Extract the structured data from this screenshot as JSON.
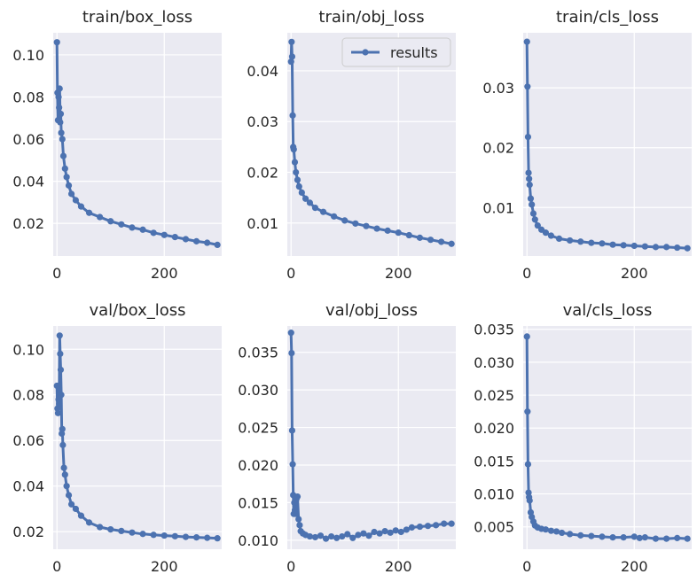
{
  "figure": {
    "series_color": "#4c72b0",
    "panel_background": "#eaeaf2",
    "grid_color": "#ffffff",
    "legend_entry": "results"
  },
  "chart_data": [
    {
      "type": "line",
      "title": "train/box_loss",
      "xlim": [
        -7,
        307
      ],
      "ylim": [
        0.0045,
        0.1105
      ],
      "xticks": [
        0,
        200
      ],
      "yticks": [
        0.02,
        0.04,
        0.06,
        0.08,
        0.1
      ],
      "ytick_labels": [
        "0.02",
        "0.04",
        "0.06",
        "0.08",
        "0.10"
      ],
      "grid": true,
      "legend": null,
      "series": [
        {
          "points": [
            [
              0,
              0.106
            ],
            [
              1,
              0.082
            ],
            [
              2,
              0.069
            ],
            [
              3,
              0.08
            ],
            [
              4,
              0.075
            ],
            [
              5,
              0.084
            ],
            [
              6,
              0.068
            ],
            [
              7,
              0.072
            ],
            [
              8,
              0.063
            ],
            [
              10,
              0.06
            ],
            [
              12,
              0.052
            ],
            [
              15,
              0.046
            ],
            [
              18,
              0.042
            ],
            [
              22,
              0.038
            ],
            [
              27,
              0.034
            ],
            [
              35,
              0.031
            ],
            [
              45,
              0.028
            ],
            [
              60,
              0.025
            ],
            [
              80,
              0.023
            ],
            [
              100,
              0.021
            ],
            [
              120,
              0.0195
            ],
            [
              140,
              0.018
            ],
            [
              160,
              0.017
            ],
            [
              180,
              0.0155
            ],
            [
              200,
              0.0145
            ],
            [
              220,
              0.0135
            ],
            [
              240,
              0.0125
            ],
            [
              260,
              0.0115
            ],
            [
              280,
              0.0108
            ],
            [
              299,
              0.0098
            ]
          ]
        }
      ]
    },
    {
      "type": "line",
      "title": "train/obj_loss",
      "xlim": [
        -7,
        307
      ],
      "ylim": [
        0.0035,
        0.0475
      ],
      "xticks": [
        0,
        200
      ],
      "yticks": [
        0.01,
        0.02,
        0.03,
        0.04
      ],
      "ytick_labels": [
        "0.01",
        "0.02",
        "0.03",
        "0.04"
      ],
      "grid": true,
      "legend": "upper right",
      "series": [
        {
          "name": "results",
          "points": [
            [
              0,
              0.0418
            ],
            [
              1,
              0.0457
            ],
            [
              2,
              0.0428
            ],
            [
              3,
              0.0312
            ],
            [
              4,
              0.025
            ],
            [
              5,
              0.0245
            ],
            [
              7,
              0.022
            ],
            [
              9,
              0.02
            ],
            [
              12,
              0.0185
            ],
            [
              15,
              0.0172
            ],
            [
              20,
              0.016
            ],
            [
              27,
              0.0148
            ],
            [
              35,
              0.014
            ],
            [
              45,
              0.013
            ],
            [
              60,
              0.0122
            ],
            [
              80,
              0.0113
            ],
            [
              100,
              0.0105
            ],
            [
              120,
              0.0099
            ],
            [
              140,
              0.0094
            ],
            [
              160,
              0.0089
            ],
            [
              180,
              0.0085
            ],
            [
              200,
              0.0081
            ],
            [
              220,
              0.0076
            ],
            [
              240,
              0.0071
            ],
            [
              260,
              0.0067
            ],
            [
              280,
              0.0063
            ],
            [
              299,
              0.0059
            ]
          ]
        }
      ]
    },
    {
      "type": "line",
      "title": "train/cls_loss",
      "xlim": [
        -7,
        307
      ],
      "ylim": [
        0.0019,
        0.0392
      ],
      "xticks": [
        0,
        200
      ],
      "yticks": [
        0.01,
        0.02,
        0.03
      ],
      "ytick_labels": [
        "0.01",
        "0.02",
        "0.03"
      ],
      "grid": true,
      "legend": null,
      "series": [
        {
          "points": [
            [
              0,
              0.0377
            ],
            [
              1,
              0.0302
            ],
            [
              2,
              0.0218
            ],
            [
              3,
              0.0158
            ],
            [
              4,
              0.0148
            ],
            [
              5,
              0.0138
            ],
            [
              7,
              0.0115
            ],
            [
              9,
              0.0105
            ],
            [
              12,
              0.009
            ],
            [
              15,
              0.008
            ],
            [
              20,
              0.007
            ],
            [
              27,
              0.0063
            ],
            [
              35,
              0.0058
            ],
            [
              45,
              0.0053
            ],
            [
              60,
              0.0048
            ],
            [
              80,
              0.0045
            ],
            [
              100,
              0.0043
            ],
            [
              120,
              0.0041
            ],
            [
              140,
              0.004
            ],
            [
              160,
              0.0038
            ],
            [
              180,
              0.0037
            ],
            [
              200,
              0.0036
            ],
            [
              220,
              0.0035
            ],
            [
              240,
              0.0034
            ],
            [
              260,
              0.0034
            ],
            [
              280,
              0.0033
            ],
            [
              299,
              0.0032
            ]
          ]
        }
      ]
    },
    {
      "type": "line",
      "title": "val/box_loss",
      "xlim": [
        -7,
        307
      ],
      "ylim": [
        0.0123,
        0.1102
      ],
      "xticks": [
        0,
        200
      ],
      "yticks": [
        0.02,
        0.04,
        0.06,
        0.08,
        0.1
      ],
      "ytick_labels": [
        "0.02",
        "0.04",
        "0.06",
        "0.08",
        "0.10"
      ],
      "grid": true,
      "legend": null,
      "series": [
        {
          "points": [
            [
              0,
              0.084
            ],
            [
              1,
              0.074
            ],
            [
              2,
              0.072
            ],
            [
              3,
              0.078
            ],
            [
              4,
              0.076
            ],
            [
              5,
              0.106
            ],
            [
              6,
              0.098
            ],
            [
              7,
              0.091
            ],
            [
              8,
              0.08
            ],
            [
              9,
              0.063
            ],
            [
              10,
              0.065
            ],
            [
              11,
              0.058
            ],
            [
              13,
              0.048
            ],
            [
              15,
              0.045
            ],
            [
              18,
              0.04
            ],
            [
              22,
              0.036
            ],
            [
              27,
              0.032
            ],
            [
              35,
              0.03
            ],
            [
              45,
              0.027
            ],
            [
              60,
              0.024
            ],
            [
              80,
              0.022
            ],
            [
              100,
              0.021
            ],
            [
              120,
              0.0203
            ],
            [
              140,
              0.0196
            ],
            [
              160,
              0.019
            ],
            [
              180,
              0.0186
            ],
            [
              200,
              0.0183
            ],
            [
              220,
              0.018
            ],
            [
              240,
              0.0177
            ],
            [
              260,
              0.0175
            ],
            [
              280,
              0.0173
            ],
            [
              299,
              0.0171
            ]
          ]
        }
      ]
    },
    {
      "type": "line",
      "title": "val/obj_loss",
      "xlim": [
        -7,
        307
      ],
      "ylim": [
        0.0088,
        0.0385
      ],
      "xticks": [
        0,
        200
      ],
      "yticks": [
        0.01,
        0.015,
        0.02,
        0.025,
        0.03,
        0.035
      ],
      "ytick_labels": [
        "0.010",
        "0.015",
        "0.020",
        "0.025",
        "0.030",
        "0.035"
      ],
      "grid": true,
      "legend": null,
      "series": [
        {
          "points": [
            [
              0,
              0.0376
            ],
            [
              1,
              0.0349
            ],
            [
              2,
              0.0246
            ],
            [
              3,
              0.0201
            ],
            [
              4,
              0.016
            ],
            [
              5,
              0.0135
            ],
            [
              6,
              0.015
            ],
            [
              7,
              0.014
            ],
            [
              8,
              0.0135
            ],
            [
              10,
              0.0155
            ],
            [
              12,
              0.0158
            ],
            [
              14,
              0.0128
            ],
            [
              16,
              0.012
            ],
            [
              18,
              0.0112
            ],
            [
              22,
              0.0109
            ],
            [
              27,
              0.0107
            ],
            [
              35,
              0.0105
            ],
            [
              45,
              0.0104
            ],
            [
              55,
              0.0106
            ],
            [
              65,
              0.0102
            ],
            [
              75,
              0.0105
            ],
            [
              85,
              0.0103
            ],
            [
              95,
              0.0105
            ],
            [
              105,
              0.0108
            ],
            [
              115,
              0.0103
            ],
            [
              125,
              0.0107
            ],
            [
              135,
              0.0109
            ],
            [
              145,
              0.0106
            ],
            [
              155,
              0.0111
            ],
            [
              165,
              0.0109
            ],
            [
              175,
              0.0112
            ],
            [
              185,
              0.011
            ],
            [
              195,
              0.0113
            ],
            [
              205,
              0.0111
            ],
            [
              215,
              0.0114
            ],
            [
              225,
              0.0117
            ],
            [
              240,
              0.0118
            ],
            [
              255,
              0.0119
            ],
            [
              270,
              0.012
            ],
            [
              285,
              0.0122
            ],
            [
              299,
              0.0122
            ]
          ]
        }
      ]
    },
    {
      "type": "line",
      "title": "val/cls_loss",
      "xlim": [
        -7,
        307
      ],
      "ylim": [
        0.0016,
        0.0355
      ],
      "xticks": [
        0,
        200
      ],
      "yticks": [
        0.005,
        0.01,
        0.015,
        0.02,
        0.025,
        0.03,
        0.035
      ],
      "ytick_labels": [
        "0.005",
        "0.010",
        "0.015",
        "0.020",
        "0.025",
        "0.030",
        "0.035"
      ],
      "grid": true,
      "legend": null,
      "series": [
        {
          "points": [
            [
              0,
              0.0339
            ],
            [
              1,
              0.0225
            ],
            [
              2,
              0.0145
            ],
            [
              3,
              0.0102
            ],
            [
              4,
              0.0095
            ],
            [
              5,
              0.009
            ],
            [
              7,
              0.0072
            ],
            [
              9,
              0.0065
            ],
            [
              12,
              0.0058
            ],
            [
              15,
              0.0052
            ],
            [
              20,
              0.0049
            ],
            [
              27,
              0.0047
            ],
            [
              35,
              0.0046
            ],
            [
              45,
              0.0044
            ],
            [
              55,
              0.0043
            ],
            [
              65,
              0.0041
            ],
            [
              80,
              0.0039
            ],
            [
              100,
              0.0037
            ],
            [
              120,
              0.0036
            ],
            [
              140,
              0.0035
            ],
            [
              160,
              0.0034
            ],
            [
              180,
              0.0034
            ],
            [
              200,
              0.0035
            ],
            [
              210,
              0.0033
            ],
            [
              220,
              0.0034
            ],
            [
              240,
              0.0032
            ],
            [
              260,
              0.0032
            ],
            [
              280,
              0.0033
            ],
            [
              299,
              0.0032
            ]
          ]
        }
      ]
    }
  ]
}
